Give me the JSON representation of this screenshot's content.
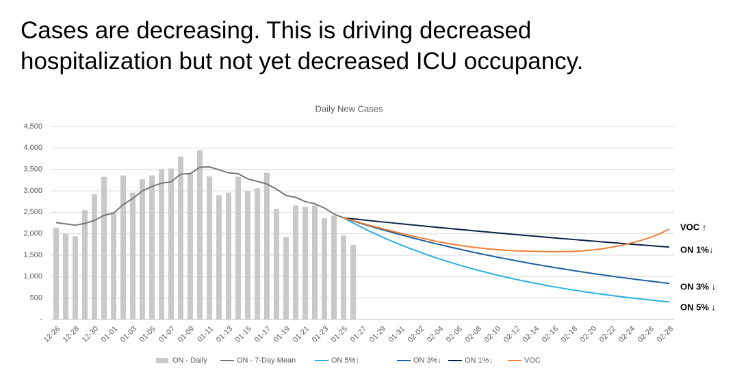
{
  "slide_title": [
    "Cases are decreasing. This is driving decreased",
    "hospitalization but not yet decreased ICU occupancy."
  ],
  "chart_data": {
    "type": "bar",
    "title": "Daily New Cases",
    "categories": [
      "12-26",
      null,
      "12-28",
      null,
      "12-30",
      null,
      "01-01",
      null,
      "01-03",
      null,
      "01-05",
      null,
      "01-07",
      null,
      "01-09",
      null,
      "01-11",
      null,
      "01-13",
      null,
      "01-15",
      null,
      "01-17",
      null,
      "01-19",
      null,
      "01-21",
      null,
      "01-23",
      null,
      "01-25",
      null,
      "01-27",
      null,
      "01-29",
      null,
      "01-31",
      null,
      "02-02",
      null,
      "02-04",
      null,
      "02-06",
      null,
      "02-08",
      null,
      "02-10",
      null,
      "02-12",
      null,
      "02-14",
      null,
      "02-16",
      null,
      "02-18",
      null,
      "02-20",
      null,
      "02-22",
      null,
      "02-24",
      null,
      "02-26",
      null,
      "02-28"
    ],
    "ylim": [
      0,
      4500
    ],
    "yticks": [
      {
        "value": 0,
        "label": "-"
      },
      500,
      {
        "value": 1000,
        "label": "1,000"
      },
      {
        "value": 1500,
        "label": "1,500"
      },
      {
        "value": 2000,
        "label": "2,000"
      },
      {
        "value": 2500,
        "label": "2,500"
      },
      {
        "value": 3000,
        "label": "3,000"
      },
      {
        "value": 3500,
        "label": "3,500"
      },
      {
        "value": 4000,
        "label": "4,000"
      },
      {
        "value": 4500,
        "label": "4,500"
      }
    ],
    "grid": true,
    "legend": "bottom",
    "series": [
      {
        "name": "ON - Daily",
        "type": "bar",
        "color": "#c9c9c9",
        "values": [
          2140,
          2000,
          1940,
          2550,
          2920,
          3330,
          2480,
          3360,
          2960,
          3270,
          3360,
          3500,
          3520,
          3800,
          3420,
          3950,
          3340,
          2900,
          2960,
          3330,
          3000,
          3060,
          3420,
          2580,
          1920,
          2660,
          2630,
          2660,
          2360,
          2420,
          1960,
          1740,
          null,
          null,
          null,
          null,
          null,
          null,
          null,
          null,
          null,
          null,
          null,
          null,
          null,
          null,
          null,
          null,
          null,
          null,
          null,
          null,
          null,
          null,
          null,
          null,
          null,
          null,
          null,
          null,
          null,
          null,
          null,
          null,
          null
        ]
      },
      {
        "name": "ON - 7-Day Mean",
        "type": "line",
        "color": "#767676",
        "values": [
          2260,
          2230,
          2200,
          2240,
          2310,
          2430,
          2480,
          2680,
          2820,
          3000,
          3100,
          3180,
          3210,
          3390,
          3400,
          3550,
          3560,
          3490,
          3420,
          3400,
          3280,
          3220,
          3160,
          3040,
          2890,
          2850,
          2750,
          2700,
          2600,
          2460,
          2370,
          null,
          null,
          null,
          null,
          null,
          null,
          null,
          null,
          null,
          null,
          null,
          null,
          null,
          null,
          null,
          null,
          null,
          null,
          null,
          null,
          null,
          null,
          null,
          null,
          null,
          null,
          null,
          null,
          null,
          null,
          null,
          null,
          null,
          null
        ]
      },
      {
        "name": "ON 5%↓",
        "type": "line",
        "color": "#29afe0",
        "values": [
          null,
          null,
          null,
          null,
          null,
          null,
          null,
          null,
          null,
          null,
          null,
          null,
          null,
          null,
          null,
          null,
          null,
          null,
          null,
          null,
          null,
          null,
          null,
          null,
          null,
          null,
          null,
          null,
          null,
          null,
          2370,
          2251,
          2138,
          2030,
          1928,
          1831,
          1739,
          1651,
          1568,
          1489,
          1414,
          1343,
          1276,
          1211,
          1150,
          1093,
          1038,
          985,
          936,
          889,
          844,
          802,
          761,
          723,
          687,
          652,
          619,
          588,
          559,
          530,
          504,
          478,
          454,
          431,
          410
        ]
      },
      {
        "name": "ON 3%↓",
        "type": "line",
        "color": "#1f5f9e",
        "values": [
          null,
          null,
          null,
          null,
          null,
          null,
          null,
          null,
          null,
          null,
          null,
          null,
          null,
          null,
          null,
          null,
          null,
          null,
          null,
          null,
          null,
          null,
          null,
          null,
          null,
          null,
          null,
          null,
          null,
          null,
          2370,
          2299,
          2230,
          2163,
          2098,
          2035,
          1974,
          1915,
          1858,
          1802,
          1748,
          1696,
          1645,
          1596,
          1548,
          1501,
          1456,
          1413,
          1370,
          1329,
          1289,
          1251,
          1213,
          1177,
          1141,
          1107,
          1074,
          1042,
          1010,
          980,
          951,
          922,
          895,
          868,
          842
        ]
      },
      {
        "name": "ON 1%↓",
        "type": "line",
        "color": "#0b1f45",
        "values": [
          null,
          null,
          null,
          null,
          null,
          null,
          null,
          null,
          null,
          null,
          null,
          null,
          null,
          null,
          null,
          null,
          null,
          null,
          null,
          null,
          null,
          null,
          null,
          null,
          null,
          null,
          null,
          null,
          null,
          null,
          2370,
          2347,
          2323,
          2300,
          2277,
          2255,
          2232,
          2210,
          2188,
          2167,
          2145,
          2124,
          2103,
          2082,
          2061,
          2041,
          2021,
          2001,
          1981,
          1961,
          1942,
          1922,
          1903,
          1884,
          1866,
          1847,
          1829,
          1811,
          1793,
          1775,
          1757,
          1740,
          1723,
          1706,
          1689
        ]
      },
      {
        "name": "VOC",
        "type": "line",
        "color": "#ed7d31",
        "values": [
          null,
          null,
          null,
          null,
          null,
          null,
          null,
          null,
          null,
          null,
          null,
          null,
          null,
          null,
          null,
          null,
          null,
          null,
          null,
          null,
          null,
          null,
          null,
          null,
          null,
          null,
          null,
          null,
          null,
          null,
          2370,
          2305,
          2242,
          2181,
          2122,
          2065,
          2010,
          1957,
          1906,
          1857,
          1810,
          1770,
          1734,
          1702,
          1674,
          1650,
          1630,
          1614,
          1602,
          1594,
          1588,
          1584,
          1582,
          1584,
          1590,
          1602,
          1622,
          1650,
          1686,
          1730,
          1782,
          1842,
          1912,
          1998,
          2110
        ]
      }
    ],
    "annotations": [
      "VOC ↑",
      "ON 1%↓",
      "ON 3% ↓",
      "ON 5% ↓"
    ]
  }
}
